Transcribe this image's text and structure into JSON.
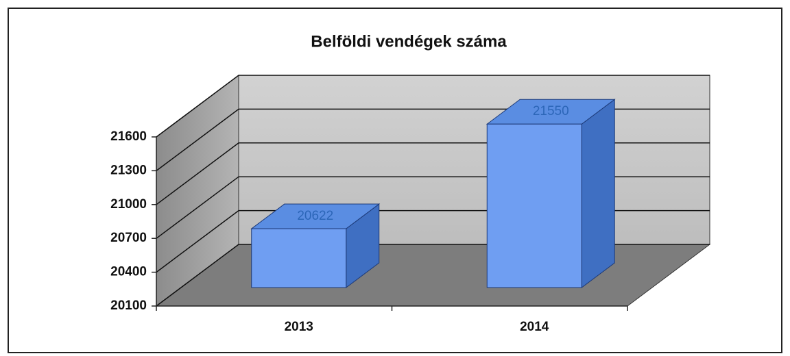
{
  "chart_data": {
    "type": "bar3d",
    "title": "Belföldi vendégek száma",
    "categories": [
      "2013",
      "2014"
    ],
    "values": [
      20622,
      21550
    ],
    "color": "#6f9ef2",
    "ylim": [
      20100,
      21600
    ],
    "yticks": [
      20100,
      20400,
      20700,
      21000,
      21300,
      21600
    ],
    "grid": true
  }
}
